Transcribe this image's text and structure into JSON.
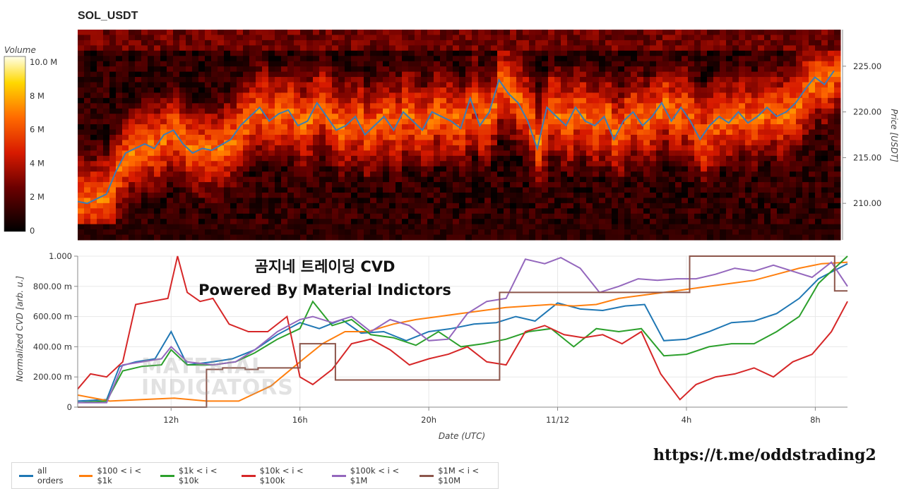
{
  "title": "SOL_USDT",
  "overlay": {
    "line1": "곰지네 트레이딩 CVD",
    "line2": "Powered By Material Indictors"
  },
  "url": "https://t.me/oddstrading2",
  "watermark": [
    "MATERIAL",
    "INDICATORS"
  ],
  "colors": {
    "all_orders": "#1f77b4",
    "s100_1k": "#ff7f0e",
    "s1k_10k": "#2ca02c",
    "s10k_100k": "#d62728",
    "s100k_1M": "#9467bd",
    "s1M_10M": "#8c564b",
    "price_line": "#3a7db8"
  },
  "chart_data": [
    {
      "type": "heatmap",
      "title": "SOL_USDT",
      "colorbar": {
        "label": "Volume",
        "ticks": [
          "10.0 M",
          "8 M",
          "6 M",
          "4 M",
          "2 M",
          "0"
        ],
        "range": [
          0,
          10.4
        ],
        "unit": "M"
      },
      "ylabel": "Price [USDT]",
      "ylim": [
        206.0,
        229.0
      ],
      "yticks": [
        "225.00",
        "220.00",
        "215.00",
        "210.00"
      ],
      "ytick_values": [
        225,
        220,
        215,
        210
      ],
      "price_series": {
        "name": "Price",
        "x_hours": [
          0,
          0.3,
          0.6,
          0.9,
          1.2,
          1.5,
          1.8,
          2.1,
          2.4,
          2.7,
          3.0,
          3.3,
          3.6,
          3.9,
          4.2,
          4.5,
          4.8,
          5.1,
          5.4,
          5.7,
          6.0,
          6.3,
          6.6,
          6.9,
          7.2,
          7.5,
          7.8,
          8.1,
          8.4,
          8.7,
          9.0,
          9.3,
          9.6,
          9.9,
          10.2,
          10.5,
          10.8,
          11.1,
          11.4,
          11.7,
          12.0,
          12.3,
          12.6,
          12.9,
          13.2,
          13.5,
          13.8,
          14.1,
          14.4,
          14.7,
          15.0,
          15.3,
          15.6,
          15.9,
          16.2,
          16.5,
          16.8,
          17.1,
          17.4,
          17.7,
          18.0,
          18.3,
          18.6,
          18.9,
          19.2,
          19.5,
          19.8,
          20.1,
          20.4,
          20.7,
          21.0,
          21.3,
          21.6,
          21.9,
          22.2,
          22.5,
          22.8,
          23.1,
          23.4,
          23.7
        ],
        "y": [
          210.2,
          210.0,
          210.5,
          211.0,
          213.5,
          215.5,
          216.0,
          216.5,
          216.0,
          217.5,
          218.0,
          216.5,
          215.5,
          216.0,
          215.8,
          216.4,
          217.0,
          218.5,
          219.5,
          220.5,
          219.0,
          219.8,
          220.2,
          218.5,
          219.0,
          221.0,
          219.5,
          218.0,
          218.5,
          219.5,
          217.5,
          218.5,
          219.5,
          218.0,
          220.0,
          219.0,
          218.0,
          220.0,
          219.5,
          219.0,
          218.2,
          221.5,
          218.5,
          220.0,
          223.5,
          222.0,
          221.0,
          219.0,
          216.0,
          220.5,
          219.5,
          218.5,
          220.5,
          219.0,
          218.5,
          219.5,
          217.0,
          219.0,
          220.0,
          218.5,
          219.5,
          221.0,
          219.0,
          220.5,
          219.0,
          217.0,
          218.5,
          219.5,
          218.8,
          220.0,
          218.8,
          219.5,
          220.5,
          219.5,
          220.0,
          221.0,
          222.5,
          223.8,
          223.0,
          224.5
        ]
      }
    },
    {
      "type": "line",
      "xlabel": "Date (UTC)",
      "ylabel": "Normalized CVD [arb. u.]",
      "ylim": [
        0,
        1.0
      ],
      "yticks": [
        "1.000",
        "800.00 m",
        "600.00 m",
        "400.00 m",
        "200.00 m",
        "0"
      ],
      "ytick_values": [
        1.0,
        0.8,
        0.6,
        0.4,
        0.2,
        0.0
      ],
      "xticks": [
        "12h",
        "16h",
        "20h",
        "11/12",
        "4h",
        "8h"
      ],
      "xtick_hours": [
        2.9,
        6.9,
        10.9,
        14.9,
        18.9,
        22.9
      ],
      "x_range_hours": [
        0,
        23.9
      ],
      "series": [
        {
          "name": "all orders",
          "color": "#1f77b4",
          "x": [
            0,
            0.9,
            1.3,
            1.8,
            2.4,
            2.9,
            3.4,
            4.2,
            4.8,
            5.5,
            6.2,
            6.9,
            7.5,
            8.2,
            8.8,
            9.5,
            10.2,
            10.9,
            11.6,
            12.3,
            13.0,
            13.6,
            14.2,
            14.9,
            15.6,
            16.3,
            17.0,
            17.6,
            18.2,
            18.9,
            19.6,
            20.3,
            21.0,
            21.7,
            22.4,
            23.0,
            23.9
          ],
          "values": [
            0.04,
            0.05,
            0.27,
            0.3,
            0.32,
            0.5,
            0.28,
            0.3,
            0.32,
            0.38,
            0.48,
            0.56,
            0.52,
            0.58,
            0.49,
            0.5,
            0.44,
            0.5,
            0.52,
            0.55,
            0.56,
            0.6,
            0.57,
            0.69,
            0.65,
            0.64,
            0.67,
            0.68,
            0.44,
            0.45,
            0.5,
            0.56,
            0.57,
            0.62,
            0.72,
            0.85,
            0.95
          ]
        },
        {
          "name": "$100 < i < $1k",
          "color": "#ff7f0e",
          "x": [
            0,
            1.0,
            2.0,
            3.0,
            4.0,
            5.0,
            6.0,
            6.9,
            7.6,
            8.3,
            9.0,
            9.8,
            10.5,
            11.2,
            11.9,
            12.6,
            13.3,
            14.0,
            14.7,
            15.4,
            16.1,
            16.8,
            17.5,
            18.2,
            18.9,
            19.6,
            20.3,
            21.0,
            21.7,
            22.4,
            23.1,
            23.9
          ],
          "values": [
            0.08,
            0.04,
            0.05,
            0.06,
            0.04,
            0.04,
            0.14,
            0.3,
            0.42,
            0.5,
            0.5,
            0.55,
            0.58,
            0.6,
            0.62,
            0.64,
            0.66,
            0.67,
            0.68,
            0.67,
            0.68,
            0.72,
            0.74,
            0.76,
            0.78,
            0.8,
            0.82,
            0.84,
            0.88,
            0.92,
            0.95,
            0.96
          ]
        },
        {
          "name": "$1k < i < $10k",
          "color": "#2ca02c",
          "x": [
            0,
            0.9,
            1.4,
            2.0,
            2.6,
            2.9,
            3.4,
            4.2,
            4.9,
            5.5,
            6.2,
            6.9,
            7.3,
            7.9,
            8.5,
            9.1,
            9.8,
            10.5,
            11.2,
            11.9,
            12.6,
            13.3,
            14.0,
            14.7,
            15.4,
            16.1,
            16.8,
            17.5,
            18.2,
            18.9,
            19.6,
            20.3,
            21.0,
            21.7,
            22.4,
            23.0,
            23.9
          ],
          "values": [
            0.03,
            0.04,
            0.24,
            0.27,
            0.28,
            0.38,
            0.28,
            0.28,
            0.3,
            0.36,
            0.45,
            0.52,
            0.7,
            0.54,
            0.58,
            0.48,
            0.46,
            0.41,
            0.5,
            0.4,
            0.42,
            0.45,
            0.5,
            0.52,
            0.4,
            0.52,
            0.5,
            0.52,
            0.34,
            0.35,
            0.4,
            0.42,
            0.42,
            0.5,
            0.6,
            0.82,
            1.0
          ]
        },
        {
          "name": "$10k < i < $100k",
          "color": "#d62728",
          "x": [
            0,
            0.4,
            0.9,
            1.4,
            1.8,
            2.3,
            2.8,
            3.1,
            3.4,
            3.8,
            4.2,
            4.7,
            5.3,
            5.9,
            6.5,
            6.9,
            7.3,
            7.9,
            8.5,
            9.1,
            9.7,
            10.3,
            10.9,
            11.5,
            12.1,
            12.7,
            13.3,
            13.9,
            14.5,
            15.1,
            15.7,
            16.3,
            16.9,
            17.5,
            18.1,
            18.7,
            19.2,
            19.8,
            20.4,
            21.0,
            21.6,
            22.2,
            22.8,
            23.4,
            23.9
          ],
          "values": [
            0.12,
            0.22,
            0.2,
            0.3,
            0.68,
            0.7,
            0.72,
            1.0,
            0.76,
            0.7,
            0.72,
            0.55,
            0.5,
            0.5,
            0.6,
            0.2,
            0.15,
            0.25,
            0.42,
            0.45,
            0.38,
            0.28,
            0.32,
            0.35,
            0.4,
            0.3,
            0.28,
            0.5,
            0.54,
            0.48,
            0.46,
            0.48,
            0.42,
            0.5,
            0.22,
            0.05,
            0.15,
            0.2,
            0.22,
            0.26,
            0.2,
            0.3,
            0.35,
            0.5,
            0.7
          ]
        },
        {
          "name": "$100k < i < $1M",
          "color": "#9467bd",
          "x": [
            0,
            0.9,
            1.4,
            2.0,
            2.6,
            2.9,
            3.4,
            4.2,
            4.9,
            5.5,
            6.2,
            6.9,
            7.3,
            7.9,
            8.5,
            9.1,
            9.7,
            10.3,
            10.9,
            11.5,
            12.1,
            12.7,
            13.3,
            13.9,
            14.5,
            15.0,
            15.6,
            16.2,
            16.8,
            17.4,
            18.0,
            18.6,
            19.2,
            19.8,
            20.4,
            21.0,
            21.6,
            22.2,
            22.8,
            23.4,
            23.9
          ],
          "values": [
            0.03,
            0.03,
            0.28,
            0.3,
            0.32,
            0.4,
            0.3,
            0.28,
            0.3,
            0.38,
            0.5,
            0.58,
            0.6,
            0.56,
            0.6,
            0.5,
            0.58,
            0.54,
            0.44,
            0.45,
            0.62,
            0.7,
            0.72,
            0.98,
            0.95,
            0.99,
            0.92,
            0.76,
            0.8,
            0.85,
            0.84,
            0.85,
            0.85,
            0.88,
            0.92,
            0.9,
            0.94,
            0.9,
            0.86,
            0.96,
            0.8
          ]
        },
        {
          "name": "$1M < i < $10M",
          "color": "#8c564b",
          "x": [
            0,
            3.2,
            3.2,
            4.0,
            4.0,
            4.5,
            4.5,
            5.2,
            5.2,
            5.6,
            5.6,
            6.3,
            6.3,
            6.9,
            6.9,
            7.3,
            7.3,
            8.0,
            8.0,
            13.1,
            13.1,
            16.8,
            16.8,
            17.8,
            17.8,
            18.7,
            18.7,
            19.0,
            19.0,
            23.5,
            23.5,
            23.9
          ],
          "values": [
            0.0,
            0.0,
            0.0,
            0.0,
            0.25,
            0.25,
            0.26,
            0.26,
            0.25,
            0.25,
            0.26,
            0.26,
            0.26,
            0.26,
            0.42,
            0.42,
            0.42,
            0.42,
            0.18,
            0.18,
            0.76,
            0.76,
            0.76,
            0.76,
            0.76,
            0.76,
            0.76,
            0.76,
            1.0,
            1.0,
            0.77,
            0.77
          ]
        }
      ]
    }
  ],
  "legend": [
    {
      "label": "all orders",
      "color": "#1f77b4"
    },
    {
      "label": "$100 < i < $1k",
      "color": "#ff7f0e"
    },
    {
      "label": "$1k < i < $10k",
      "color": "#2ca02c"
    },
    {
      "label": "$10k < i < $100k",
      "color": "#d62728"
    },
    {
      "label": "$100k < i < $1M",
      "color": "#9467bd"
    },
    {
      "label": "$1M < i < $10M",
      "color": "#8c564b"
    }
  ]
}
